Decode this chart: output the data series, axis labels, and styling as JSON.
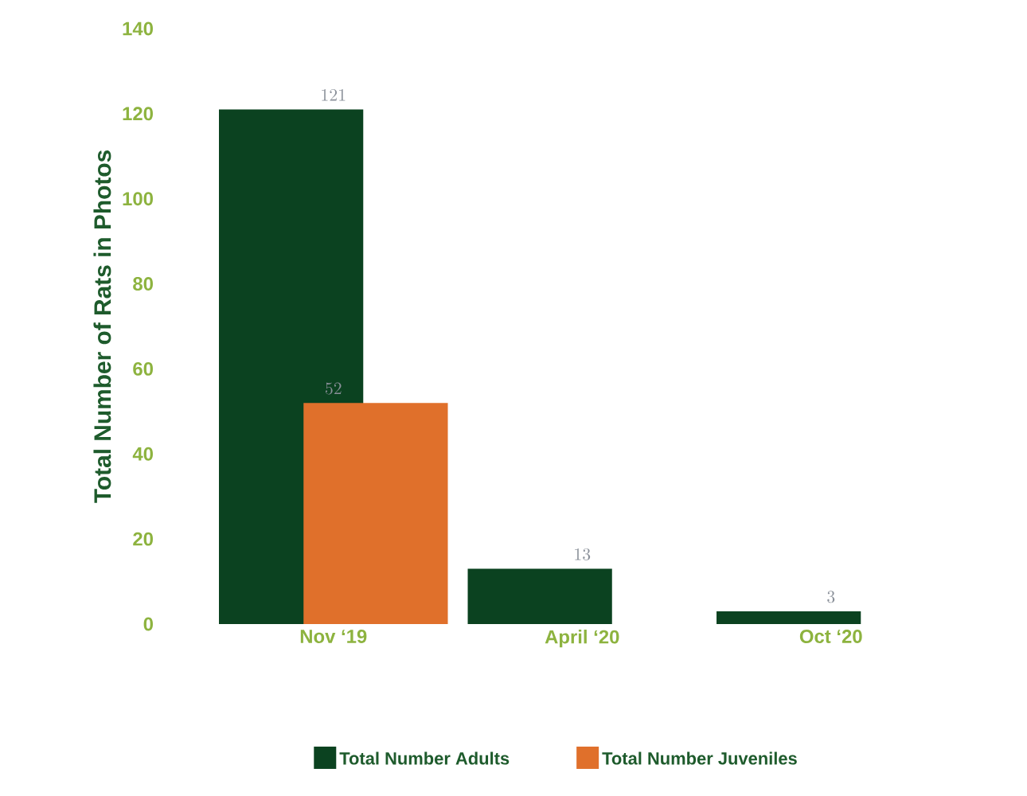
{
  "chart_data": {
    "type": "bar",
    "ylabel": "Total Number of Rats in Photos",
    "categories": [
      "Nov ‘19",
      "April ‘20",
      "Oct ‘20"
    ],
    "series": [
      {
        "name": "Total Number Adults",
        "color": "#0b4220",
        "values": [
          121,
          13,
          3
        ]
      },
      {
        "name": "Total Number Juveniles",
        "color": "#e0702b",
        "values": [
          52,
          null,
          null
        ]
      }
    ],
    "ylim": [
      0,
      140
    ],
    "yticks": [
      0,
      20,
      40,
      60,
      80,
      100,
      120,
      140
    ],
    "data_labels": true,
    "legend": "bottom",
    "grid": false
  }
}
